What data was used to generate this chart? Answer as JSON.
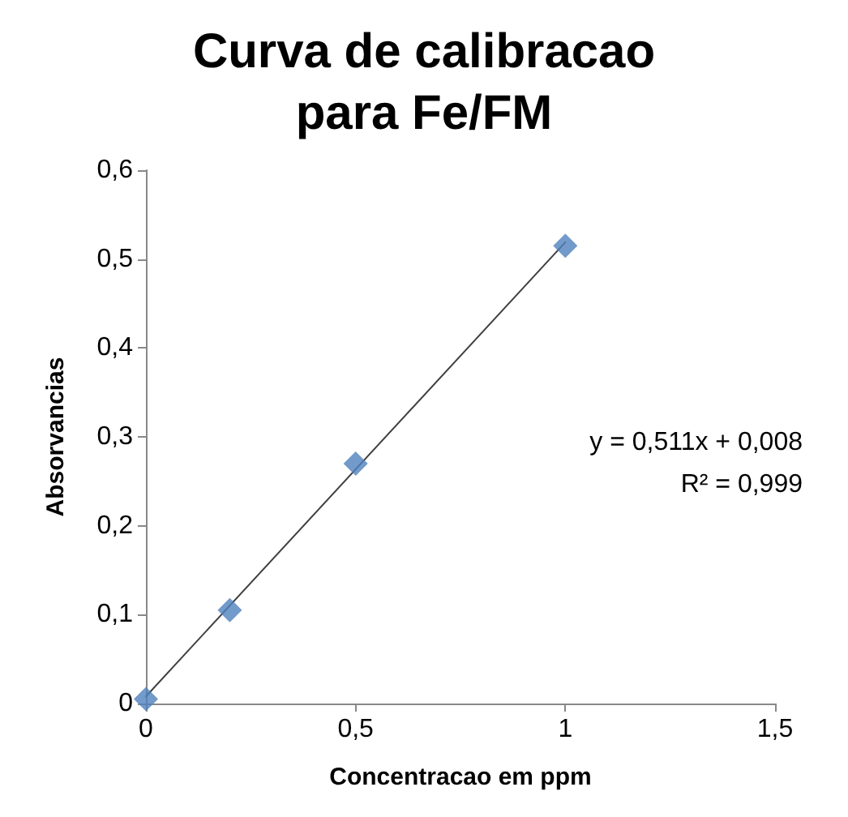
{
  "chart_data": {
    "type": "scatter",
    "title": "Curva de calibracao\npara Fe/FM",
    "xlabel": "Concentracao em ppm",
    "ylabel": "Absorvancias",
    "xlim": [
      0,
      1.5
    ],
    "xticks": [
      0,
      {
        "value": 0.5,
        "label": "0,5"
      },
      1,
      {
        "value": 1.5,
        "label": "1,5"
      }
    ],
    "ylim": [
      0,
      0.6
    ],
    "yticks": [
      0,
      {
        "value": 0.1,
        "label": "0,1"
      },
      {
        "value": 0.2,
        "label": "0,2"
      },
      {
        "value": 0.3,
        "label": "0,3"
      },
      {
        "value": 0.4,
        "label": "0,4"
      },
      {
        "value": 0.5,
        "label": "0,5"
      },
      {
        "value": 0.6,
        "label": "0,6"
      }
    ],
    "grid": false,
    "marker": "diamond",
    "series": [
      {
        "color": "#4f81bd",
        "x": [
          0,
          0.2,
          0.5,
          1
        ],
        "values": [
          0.005,
          0.105,
          0.27,
          0.515
        ]
      },
      {
        "type": "line",
        "color": "#404040",
        "marker": "none",
        "line_style": "solid",
        "x": [
          0,
          1
        ],
        "values": [
          0.008,
          0.519
        ]
      }
    ],
    "annotations": [
      "y = 0,511x + 0,008",
      "R² = 0,999"
    ]
  }
}
